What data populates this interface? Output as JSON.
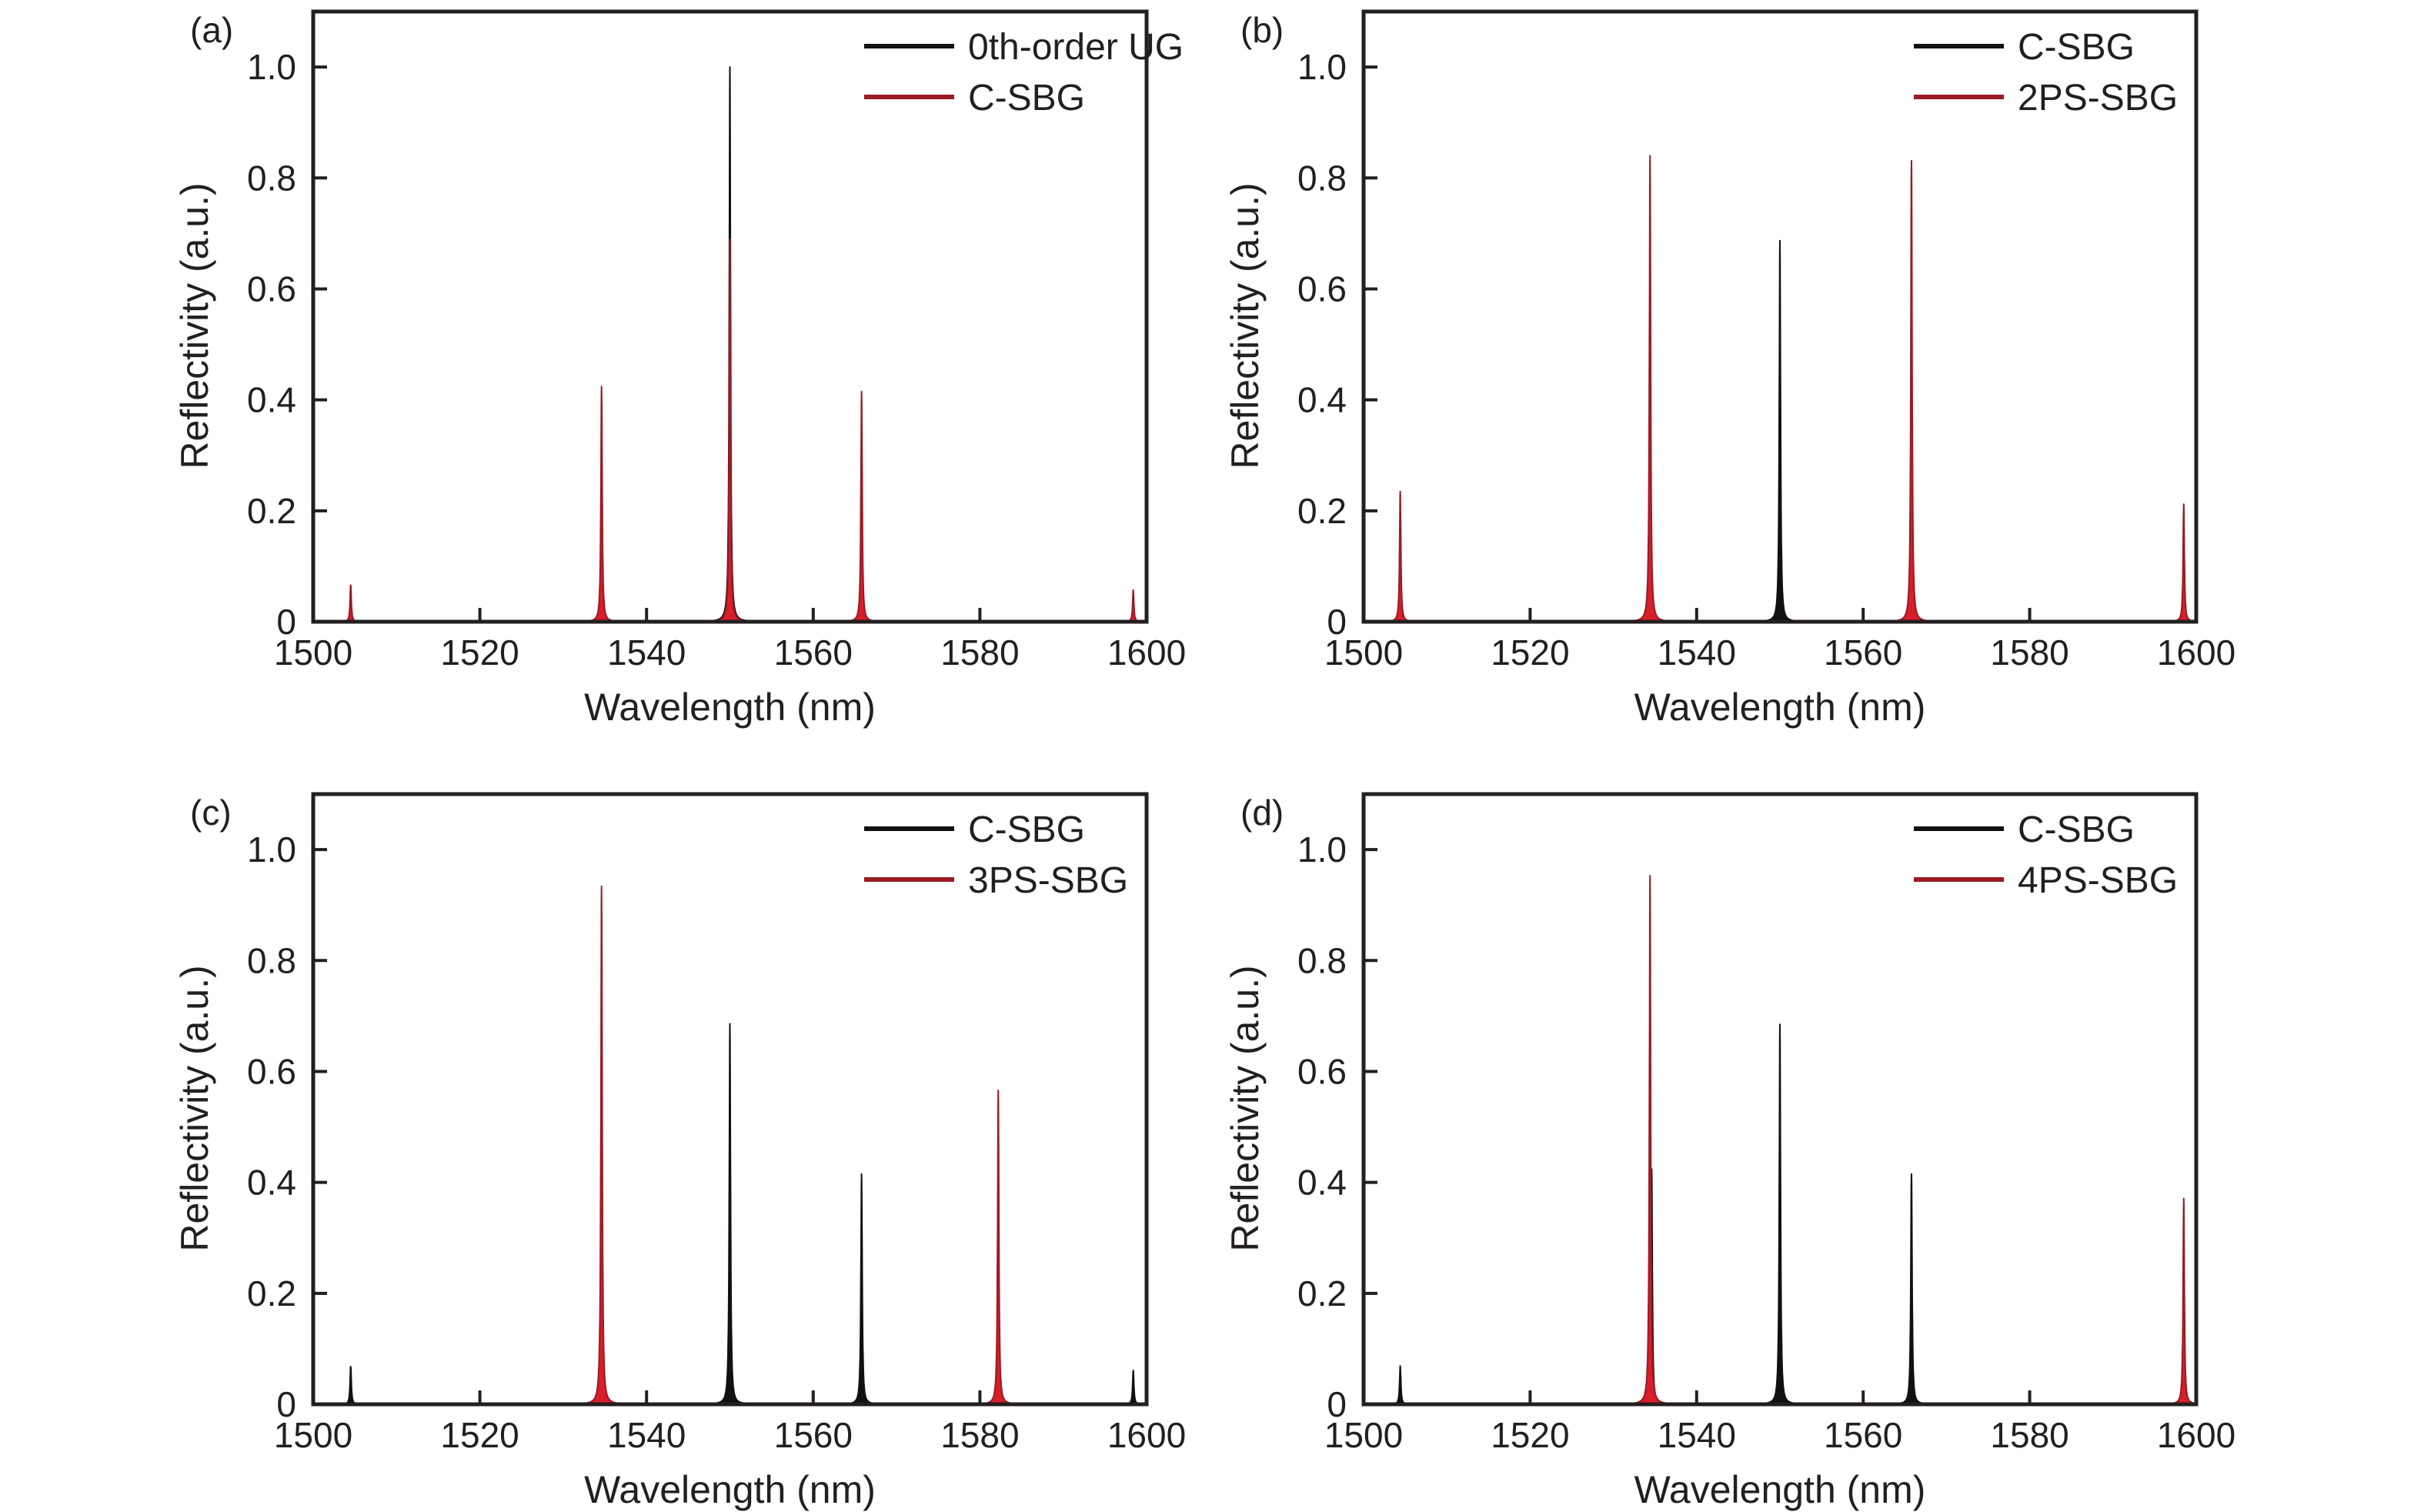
{
  "figure": {
    "colors": {
      "black_series": "#111111",
      "red_series": "#d81e2a",
      "red_series_edge": "#9a1b24",
      "axis": "#231f20"
    }
  },
  "chart_data": [
    {
      "panel": "(a)",
      "type": "line",
      "xlabel": "Wavelength (nm)",
      "ylabel": "Reflectivity (a.u.)",
      "xlim": [
        1500,
        1600
      ],
      "ylim": [
        0,
        1.1
      ],
      "xticks": [
        1500,
        1520,
        1540,
        1560,
        1580,
        1600
      ],
      "xtick_labels": [
        "1500",
        "1520",
        "1540",
        "1560",
        "1580",
        "1600"
      ],
      "yticks": [
        0,
        0.2,
        0.4,
        0.6,
        0.8,
        1.0
      ],
      "ytick_labels": [
        "0",
        "0.2",
        "0.4",
        "0.6",
        "0.8",
        "1.0"
      ],
      "grid": false,
      "legend_position": "top-right",
      "series": [
        {
          "name": "0th-order UG",
          "color": "black",
          "peaks": [
            {
              "x": 1550.0,
              "y": 1.0
            }
          ]
        },
        {
          "name": "C-SBG",
          "color": "red",
          "peaks": [
            {
              "x": 1504.5,
              "y": 0.066
            },
            {
              "x": 1534.6,
              "y": 0.424
            },
            {
              "x": 1550.0,
              "y": 0.69
            },
            {
              "x": 1565.8,
              "y": 0.415
            },
            {
              "x": 1598.4,
              "y": 0.057
            }
          ]
        }
      ]
    },
    {
      "panel": "(b)",
      "type": "line",
      "xlabel": "Wavelength (nm)",
      "ylabel": "Reflectivity (a.u.)",
      "xlim": [
        1500,
        1600
      ],
      "ylim": [
        0,
        1.1
      ],
      "xticks": [
        1500,
        1520,
        1540,
        1560,
        1580,
        1600
      ],
      "xtick_labels": [
        "1500",
        "1520",
        "1540",
        "1560",
        "1580",
        "1600"
      ],
      "yticks": [
        0,
        0.2,
        0.4,
        0.6,
        0.8,
        1.0
      ],
      "ytick_labels": [
        "0",
        "0.2",
        "0.4",
        "0.6",
        "0.8",
        "1.0"
      ],
      "grid": false,
      "legend_position": "top-right",
      "series": [
        {
          "name": "C-SBG",
          "color": "black",
          "peaks": [
            {
              "x": 1550.0,
              "y": 0.687
            }
          ]
        },
        {
          "name": "2PS-SBG",
          "color": "red",
          "peaks": [
            {
              "x": 1504.4,
              "y": 0.235
            },
            {
              "x": 1534.4,
              "y": 0.84
            },
            {
              "x": 1565.8,
              "y": 0.831
            },
            {
              "x": 1598.5,
              "y": 0.212
            }
          ]
        }
      ]
    },
    {
      "panel": "(c)",
      "type": "line",
      "xlabel": "Wavelength (nm)",
      "ylabel": "Reflectivity (a.u.)",
      "xlim": [
        1500,
        1600
      ],
      "ylim": [
        0,
        1.1
      ],
      "xticks": [
        1500,
        1520,
        1540,
        1560,
        1580,
        1600
      ],
      "xtick_labels": [
        "1500",
        "1520",
        "1540",
        "1560",
        "1580",
        "1600"
      ],
      "yticks": [
        0,
        0.2,
        0.4,
        0.6,
        0.8,
        1.0
      ],
      "ytick_labels": [
        "0",
        "0.2",
        "0.4",
        "0.6",
        "0.8",
        "1.0"
      ],
      "grid": false,
      "legend_position": "top-right",
      "series": [
        {
          "name": "C-SBG",
          "color": "black",
          "peaks": [
            {
              "x": 1504.5,
              "y": 0.068
            },
            {
              "x": 1534.6,
              "y": 0.424
            },
            {
              "x": 1550.0,
              "y": 0.686
            },
            {
              "x": 1565.8,
              "y": 0.415
            },
            {
              "x": 1598.4,
              "y": 0.061
            }
          ]
        },
        {
          "name": "3PS-SBG",
          "color": "red",
          "peaks": [
            {
              "x": 1534.6,
              "y": 0.934
            },
            {
              "x": 1582.2,
              "y": 0.566
            }
          ]
        }
      ]
    },
    {
      "panel": "(d)",
      "type": "line",
      "xlabel": "Wavelength (nm)",
      "ylabel": "Reflectivity (a.u.)",
      "xlim": [
        1500,
        1600
      ],
      "ylim": [
        0,
        1.1
      ],
      "xticks": [
        1500,
        1520,
        1540,
        1560,
        1580,
        1600
      ],
      "xtick_labels": [
        "1500",
        "1520",
        "1540",
        "1560",
        "1580",
        "1600"
      ],
      "yticks": [
        0,
        0.2,
        0.4,
        0.6,
        0.8,
        1.0
      ],
      "ytick_labels": [
        "0",
        "0.2",
        "0.4",
        "0.6",
        "0.8",
        "1.0"
      ],
      "grid": false,
      "legend_position": "top-right",
      "series": [
        {
          "name": "C-SBG",
          "color": "black",
          "peaks": [
            {
              "x": 1504.4,
              "y": 0.069
            },
            {
              "x": 1534.6,
              "y": 0.424
            },
            {
              "x": 1550.0,
              "y": 0.685
            },
            {
              "x": 1565.8,
              "y": 0.415
            },
            {
              "x": 1598.4,
              "y": 0.06
            }
          ]
        },
        {
          "name": "4PS-SBG",
          "color": "red",
          "peaks": [
            {
              "x": 1534.4,
              "y": 0.953
            },
            {
              "x": 1598.5,
              "y": 0.371
            }
          ]
        }
      ]
    }
  ]
}
